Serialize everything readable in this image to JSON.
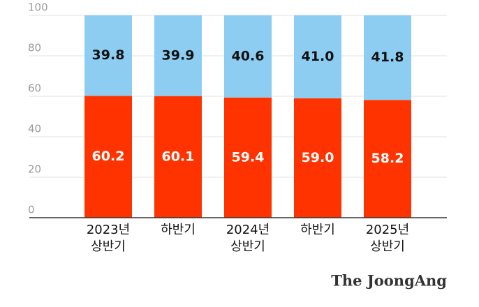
{
  "chart_data": {
    "type": "stacked_bar",
    "categories": [
      [
        "2023년",
        "상반기"
      ],
      [
        "하반기"
      ],
      [
        "2024년",
        "상반기"
      ],
      [
        "하반기"
      ],
      [
        "2025년",
        "상반기"
      ]
    ],
    "series": [
      {
        "color": "#ff3300",
        "values": [
          60.2,
          60.1,
          59.4,
          59.0,
          58.2
        ],
        "value_labels": [
          "60.2",
          "60.1",
          "59.4",
          "59.0",
          "58.2"
        ]
      },
      {
        "color": "#8ecdf2",
        "values": [
          39.8,
          39.9,
          40.6,
          41.0,
          41.8
        ],
        "value_labels": [
          "39.8",
          "39.9",
          "40.6",
          "41.0",
          "41.8"
        ]
      }
    ],
    "ylim": [
      0,
      100
    ],
    "yticks": [
      0,
      20,
      40,
      60,
      80,
      100
    ],
    "grid": true,
    "credit": "The JoongAng"
  }
}
